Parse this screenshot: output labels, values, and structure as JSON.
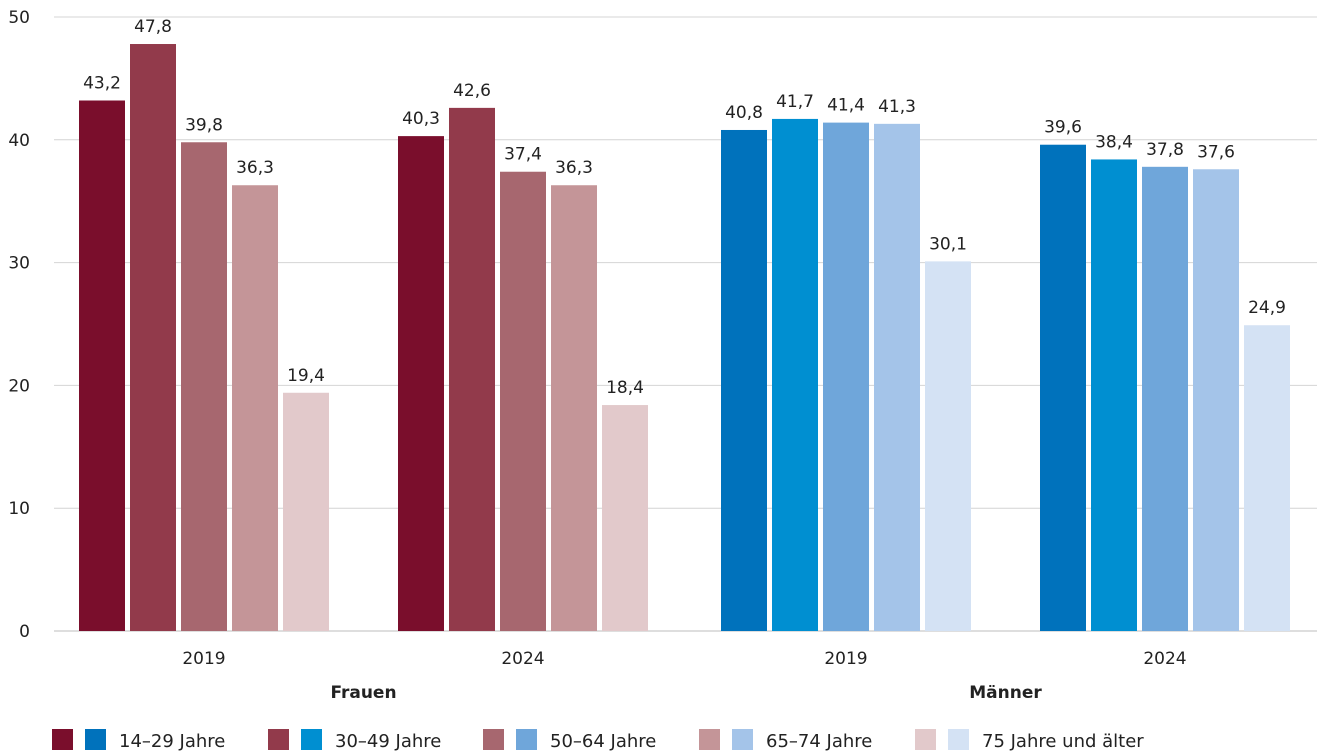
{
  "chart_data": {
    "type": "bar",
    "title": "",
    "xlabel": "",
    "ylabel": "",
    "ylim": [
      0,
      50
    ],
    "yticks": [
      0,
      10,
      20,
      30,
      40,
      50
    ],
    "grid": true,
    "legend_position": "bottom",
    "groups": [
      {
        "name": "Frauen",
        "palette": "red",
        "years": [
          {
            "year": "2019",
            "values": [
              43.2,
              47.8,
              39.8,
              36.3,
              19.4
            ],
            "labels": [
              "43,2",
              "47,8",
              "39,8",
              "36,3",
              "19,4"
            ]
          },
          {
            "year": "2024",
            "values": [
              40.3,
              42.6,
              37.4,
              36.3,
              18.4
            ],
            "labels": [
              "40,3",
              "42,6",
              "37,4",
              "36,3",
              "18,4"
            ]
          }
        ]
      },
      {
        "name": "Männer",
        "palette": "blue",
        "years": [
          {
            "year": "2019",
            "values": [
              40.8,
              41.7,
              41.4,
              41.3,
              30.1
            ],
            "labels": [
              "40,8",
              "41,7",
              "41,4",
              "41,3",
              "30,1"
            ]
          },
          {
            "year": "2024",
            "values": [
              39.6,
              38.4,
              37.8,
              37.6,
              24.9
            ],
            "labels": [
              "39,6",
              "38,4",
              "37,8",
              "37,6",
              "24,9"
            ]
          }
        ]
      }
    ],
    "series": [
      {
        "name": "14–29 Jahre",
        "color_red": "#7a0e2c",
        "color_blue": "#0072bc"
      },
      {
        "name": "30–49 Jahre",
        "color_red": "#923a4b",
        "color_blue": "#008fd1"
      },
      {
        "name": "50–64 Jahre",
        "color_red": "#a7676f",
        "color_blue": "#6fa6da"
      },
      {
        "name": "65–74 Jahre",
        "color_red": "#c49598",
        "color_blue": "#a4c4e9"
      },
      {
        "name": "75 Jahre und älter",
        "color_red": "#e2c9cb",
        "color_blue": "#d4e2f4"
      }
    ]
  }
}
